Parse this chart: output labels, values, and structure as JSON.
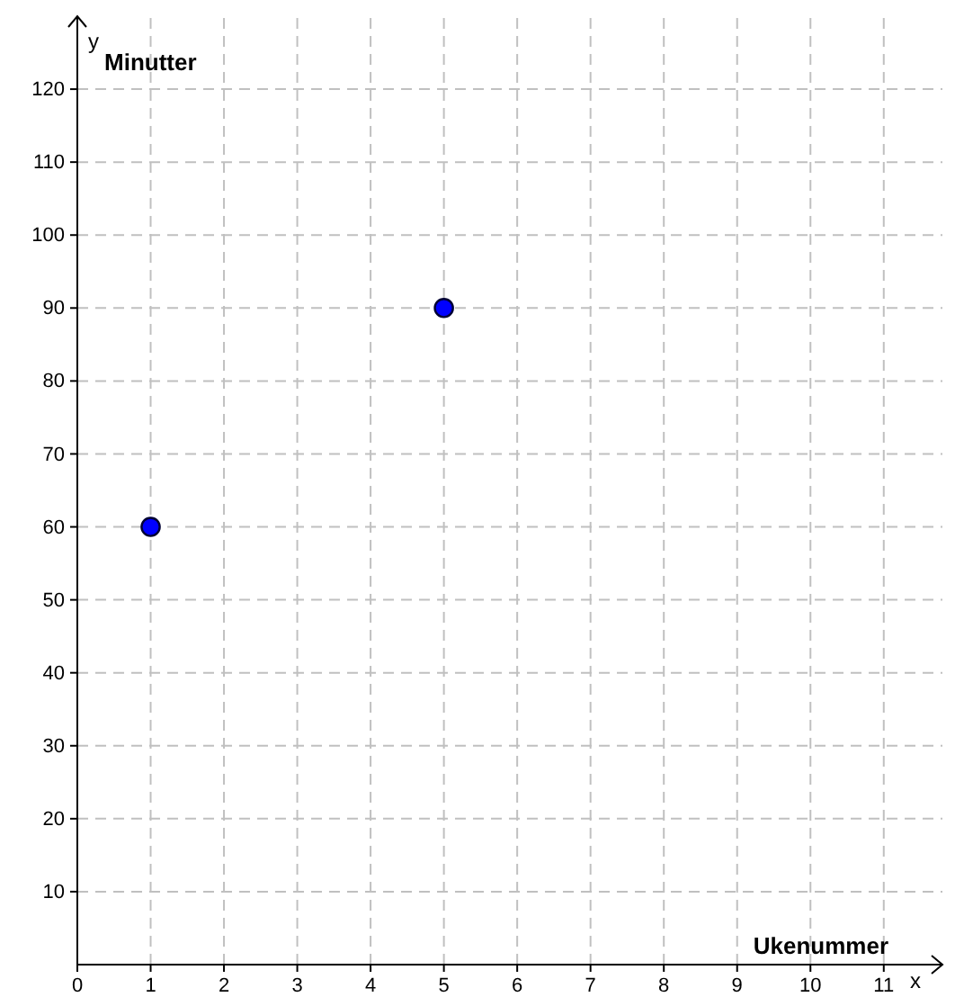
{
  "chart_data": {
    "type": "scatter",
    "xlabel": "Ukenummer",
    "ylabel": "Minutter",
    "annotations": [
      "x",
      "y"
    ],
    "x": [
      1,
      5
    ],
    "series": [
      {
        "color": "#0000ff",
        "values": [
          60,
          90
        ]
      }
    ],
    "xlim": [
      0,
      11.8
    ],
    "ylim": [
      0,
      130
    ],
    "xticks": [
      0,
      1,
      2,
      3,
      4,
      5,
      6,
      7,
      8,
      9,
      10,
      11
    ],
    "yticks": [
      10,
      20,
      30,
      40,
      50,
      60,
      70,
      80,
      90,
      100,
      110,
      120
    ],
    "grid": true,
    "marker": "circle"
  }
}
